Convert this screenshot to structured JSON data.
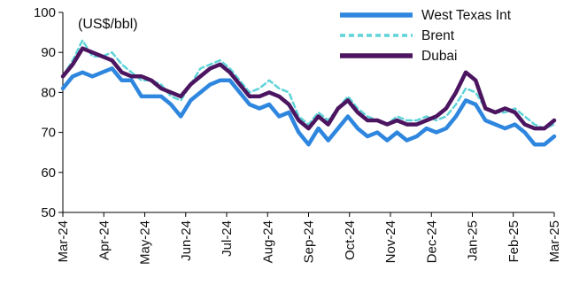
{
  "chart_data": {
    "type": "line",
    "unit_label": "(US$/bbl)",
    "ylim": [
      50,
      100
    ],
    "yticks": [
      50,
      60,
      70,
      80,
      90,
      100
    ],
    "x_axis_labels": [
      "Mar-24",
      "Apr-24",
      "May-24",
      "Jun-24",
      "Jul-24",
      "Aug-24",
      "Sep-24",
      "Oct-24",
      "Nov-24",
      "Dec-24",
      "Jan-25",
      "Feb-25",
      "Mar-25"
    ],
    "grid": false,
    "legend_position": "top-right",
    "series": [
      {
        "name": "West Texas Int",
        "color": "#2e86de",
        "points": [
          [
            "Mar-24",
            81
          ],
          [
            "Mar-24 wk2",
            84
          ],
          [
            "Mar-24 wk3",
            85
          ],
          [
            "Mar-24 wk4",
            84
          ],
          [
            "Apr-24",
            85
          ],
          [
            "Apr-24 wk2",
            86
          ],
          [
            "Apr-24 wk3",
            83
          ],
          [
            "Apr-24 wk4",
            83
          ],
          [
            "May-24",
            79
          ],
          [
            "May-24 wk2",
            79
          ],
          [
            "May-24 wk3",
            79
          ],
          [
            "May-24 wk4",
            77
          ],
          [
            "Jun-24",
            74
          ],
          [
            "Jun-24 wk2",
            78
          ],
          [
            "Jun-24 wk3",
            80
          ],
          [
            "Jun-24 wk4",
            82
          ],
          [
            "Jul-24",
            83
          ],
          [
            "Jul-24 wk2",
            83
          ],
          [
            "Jul-24 wk3",
            80
          ],
          [
            "Jul-24 wk4",
            77
          ],
          [
            "Aug-24",
            76
          ],
          [
            "Aug-24 wk2",
            77
          ],
          [
            "Aug-24 wk3",
            74
          ],
          [
            "Aug-24 wk4",
            75
          ],
          [
            "Sep-24",
            70
          ],
          [
            "Sep-24 wk2",
            67
          ],
          [
            "Sep-24 wk3",
            71
          ],
          [
            "Sep-24 wk4",
            68
          ],
          [
            "Oct-24",
            71
          ],
          [
            "Oct-24 wk2",
            74
          ],
          [
            "Oct-24 wk3",
            71
          ],
          [
            "Oct-24 wk4",
            69
          ],
          [
            "Nov-24",
            70
          ],
          [
            "Nov-24 wk2",
            68
          ],
          [
            "Nov-24 wk3",
            70
          ],
          [
            "Nov-24 wk4",
            68
          ],
          [
            "Dec-24",
            69
          ],
          [
            "Dec-24 wk2",
            71
          ],
          [
            "Dec-24 wk3",
            70
          ],
          [
            "Dec-24 wk4",
            71
          ],
          [
            "Jan-25",
            74
          ],
          [
            "Jan-25 wk2",
            78
          ],
          [
            "Jan-25 wk3",
            77
          ],
          [
            "Jan-25 wk4",
            73
          ],
          [
            "Feb-25",
            72
          ],
          [
            "Feb-25 wk2",
            71
          ],
          [
            "Feb-25 wk3",
            72
          ],
          [
            "Feb-25 wk4",
            70
          ],
          [
            "Mar-25 wk0",
            67
          ],
          [
            "Mar-25 wk1",
            67
          ],
          [
            "Mar-25",
            69
          ]
        ]
      },
      {
        "name": "Brent",
        "color": "#5fd3d8",
        "points": [
          [
            "Mar-24",
            84
          ],
          [
            "Mar-24 wk2",
            88
          ],
          [
            "Mar-24 wk3",
            93
          ],
          [
            "Mar-24 wk4",
            89
          ],
          [
            "Apr-24",
            89
          ],
          [
            "Apr-24 wk2",
            90
          ],
          [
            "Apr-24 wk3",
            87
          ],
          [
            "Apr-24 wk4",
            85
          ],
          [
            "May-24",
            83
          ],
          [
            "May-24 wk2",
            83
          ],
          [
            "May-24 wk3",
            82
          ],
          [
            "May-24 wk4",
            79
          ],
          [
            "Jun-24",
            78
          ],
          [
            "Jun-24 wk2",
            82
          ],
          [
            "Jun-24 wk3",
            86
          ],
          [
            "Jun-24 wk4",
            87
          ],
          [
            "Jul-24",
            88
          ],
          [
            "Jul-24 wk2",
            86
          ],
          [
            "Jul-24 wk3",
            83
          ],
          [
            "Jul-24 wk4",
            80
          ],
          [
            "Aug-24",
            81
          ],
          [
            "Aug-24 wk2",
            83
          ],
          [
            "Aug-24 wk3",
            81
          ],
          [
            "Aug-24 wk4",
            80
          ],
          [
            "Sep-24",
            74
          ],
          [
            "Sep-24 wk2",
            72
          ],
          [
            "Sep-24 wk3",
            75
          ],
          [
            "Sep-24 wk4",
            73
          ],
          [
            "Oct-24",
            76
          ],
          [
            "Oct-24 wk2",
            79
          ],
          [
            "Oct-24 wk3",
            76
          ],
          [
            "Oct-24 wk4",
            74
          ],
          [
            "Nov-24",
            73
          ],
          [
            "Nov-24 wk2",
            72
          ],
          [
            "Nov-24 wk3",
            74
          ],
          [
            "Nov-24 wk4",
            73
          ],
          [
            "Dec-24",
            73
          ],
          [
            "Dec-24 wk2",
            74
          ],
          [
            "Dec-24 wk3",
            73
          ],
          [
            "Dec-24 wk4",
            74
          ],
          [
            "Jan-25",
            77
          ],
          [
            "Jan-25 wk2",
            81
          ],
          [
            "Jan-25 wk3",
            80
          ],
          [
            "Jan-25 wk4",
            76
          ],
          [
            "Feb-25",
            75
          ],
          [
            "Feb-25 wk2",
            75
          ],
          [
            "Feb-25 wk3",
            76
          ],
          [
            "Feb-25 wk4",
            74
          ],
          [
            "Mar-25 wk0",
            72
          ],
          [
            "Mar-25 wk1",
            71
          ],
          [
            "Mar-25",
            72
          ]
        ]
      },
      {
        "name": "Dubai",
        "color": "#4b1560",
        "points": [
          [
            "Mar-24",
            84
          ],
          [
            "Mar-24 wk2",
            87
          ],
          [
            "Mar-24 wk3",
            91
          ],
          [
            "Mar-24 wk4",
            90
          ],
          [
            "Apr-24",
            89
          ],
          [
            "Apr-24 wk2",
            88
          ],
          [
            "Apr-24 wk3",
            85
          ],
          [
            "Apr-24 wk4",
            84
          ],
          [
            "May-24",
            84
          ],
          [
            "May-24 wk2",
            83
          ],
          [
            "May-24 wk3",
            81
          ],
          [
            "May-24 wk4",
            80
          ],
          [
            "Jun-24",
            79
          ],
          [
            "Jun-24 wk2",
            82
          ],
          [
            "Jun-24 wk3",
            84
          ],
          [
            "Jun-24 wk4",
            86
          ],
          [
            "Jul-24",
            87
          ],
          [
            "Jul-24 wk2",
            85
          ],
          [
            "Jul-24 wk3",
            82
          ],
          [
            "Jul-24 wk4",
            79
          ],
          [
            "Aug-24",
            79
          ],
          [
            "Aug-24 wk2",
            80
          ],
          [
            "Aug-24 wk3",
            79
          ],
          [
            "Aug-24 wk4",
            77
          ],
          [
            "Sep-24",
            73
          ],
          [
            "Sep-24 wk2",
            71
          ],
          [
            "Sep-24 wk3",
            74
          ],
          [
            "Sep-24 wk4",
            72
          ],
          [
            "Oct-24",
            76
          ],
          [
            "Oct-24 wk2",
            78
          ],
          [
            "Oct-24 wk3",
            75
          ],
          [
            "Oct-24 wk4",
            73
          ],
          [
            "Nov-24",
            73
          ],
          [
            "Nov-24 wk2",
            72
          ],
          [
            "Nov-24 wk3",
            73
          ],
          [
            "Nov-24 wk4",
            72
          ],
          [
            "Dec-24",
            72
          ],
          [
            "Dec-24 wk2",
            73
          ],
          [
            "Dec-24 wk3",
            74
          ],
          [
            "Dec-24 wk4",
            76
          ],
          [
            "Jan-25",
            80
          ],
          [
            "Jan-25 wk2",
            85
          ],
          [
            "Jan-25 wk3",
            83
          ],
          [
            "Jan-25 wk4",
            76
          ],
          [
            "Feb-25",
            75
          ],
          [
            "Feb-25 wk2",
            76
          ],
          [
            "Feb-25 wk3",
            75
          ],
          [
            "Feb-25 wk4",
            72
          ],
          [
            "Mar-25 wk0",
            71
          ],
          [
            "Mar-25 wk1",
            71
          ],
          [
            "Mar-25",
            73
          ]
        ]
      }
    ]
  }
}
